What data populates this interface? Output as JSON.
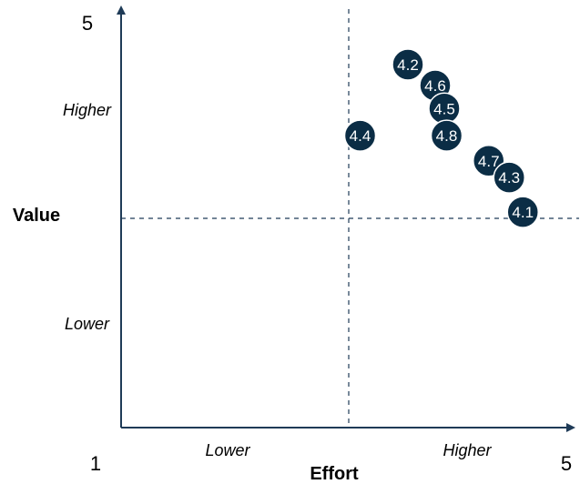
{
  "chart_data": {
    "type": "scatter",
    "xlabel": "Effort",
    "ylabel": "Value",
    "x_tick_labels": [
      "Lower",
      "Higher"
    ],
    "y_tick_labels": [
      "Higher",
      "Lower"
    ],
    "x_min_label": "1",
    "x_max_label": "5",
    "y_max_label": "5",
    "xlim": [
      1,
      5
    ],
    "ylim": [
      1,
      5
    ],
    "quadrant_lines": {
      "x": 3,
      "y": 3
    },
    "points": [
      {
        "label": "4.2",
        "x": 3.52,
        "y": 4.47
      },
      {
        "label": "4.6",
        "x": 3.76,
        "y": 4.27
      },
      {
        "label": "4.5",
        "x": 3.84,
        "y": 4.05
      },
      {
        "label": "4.4",
        "x": 3.1,
        "y": 3.79
      },
      {
        "label": "4.8",
        "x": 3.86,
        "y": 3.79
      },
      {
        "label": "4.7",
        "x": 4.23,
        "y": 3.55
      },
      {
        "label": "4.3",
        "x": 4.41,
        "y": 3.39
      },
      {
        "label": "4.1",
        "x": 4.53,
        "y": 3.06
      }
    ],
    "colors": {
      "marker": "#0b2d45",
      "marker_outline": "#ffffff",
      "marker_text": "#ffffff",
      "axis": "#1f3b57",
      "divider": "#1f3b57"
    }
  }
}
